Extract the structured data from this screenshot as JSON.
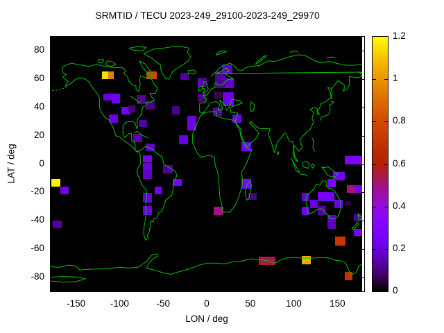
{
  "title": "SRMTID / TECU 2023-249_29100-2023-249_29970",
  "axes": {
    "x_label": "LON / deg",
    "y_label": "LAT / deg",
    "x_ticks": [
      -150,
      -100,
      -50,
      0,
      50,
      100,
      150
    ],
    "y_ticks": [
      80,
      60,
      40,
      20,
      0,
      -20,
      -40,
      -60,
      -80
    ],
    "x_range": [
      -180,
      180
    ],
    "y_range": [
      -90,
      90
    ]
  },
  "colorbar": {
    "min": 0,
    "max": 1.2,
    "tick_values": [
      0,
      0.2,
      0.4,
      0.6,
      0.8,
      1,
      1.2
    ],
    "tick_labels": [
      "0",
      "0.2",
      "0.4",
      "0.6",
      "0.8",
      "1",
      "1.2"
    ]
  },
  "colors": {
    "page_background": "#ffffff",
    "map_background": "#000000",
    "coastline": "#00c400",
    "frame": "#000000"
  },
  "chart_data": {
    "type": "heatmap",
    "title": "SRMTID / TECU 2023-249_29100-2023-249_29970",
    "units": "TECU",
    "value_range": [
      0,
      1.2
    ],
    "palette": "gnuplot pm3d (black - violet - red - orange - yellow)",
    "xlabel": "LON / deg",
    "ylabel": "LAT / deg",
    "cells": [
      {
        "lon": -121,
        "lat": 65.5,
        "v": 1.15,
        "w": 7,
        "h": 5.4
      },
      {
        "lon": -114,
        "lat": 65.5,
        "v": 0.95,
        "w": 6.5,
        "h": 5.4
      },
      {
        "lon": -70,
        "lat": 65.5,
        "v": 0.78,
        "w": 12,
        "h": 5.4
      },
      {
        "lon": -119.5,
        "lat": 50,
        "v": 0.2,
        "w": 9.5,
        "h": 5
      },
      {
        "lon": -110,
        "lat": 50,
        "v": 0.24,
        "w": 9.5,
        "h": 7
      },
      {
        "lon": -99,
        "lat": 40.5,
        "v": 0.25,
        "w": 10.5,
        "h": 5.4
      },
      {
        "lon": -113,
        "lat": 35,
        "v": 0.2,
        "w": 10.5,
        "h": 6
      },
      {
        "lon": -81,
        "lat": 49,
        "v": 0.12,
        "w": 10.5,
        "h": 6.4
      },
      {
        "lon": -71,
        "lat": 45,
        "v": 0.1,
        "w": 10.5,
        "h": 6.4
      },
      {
        "lon": -91,
        "lat": 41.5,
        "v": 0.1,
        "w": 8,
        "h": 5
      },
      {
        "lon": -79,
        "lat": 31,
        "v": 0.13,
        "w": 9.5,
        "h": 5
      },
      {
        "lon": -85,
        "lat": 21.5,
        "v": 0.14,
        "w": 10.5,
        "h": 6
      },
      {
        "lon": -71,
        "lat": 14.5,
        "v": 0.17,
        "w": 10.5,
        "h": 5.4
      },
      {
        "lon": -74,
        "lat": 6,
        "v": 0.26,
        "w": 10.5,
        "h": 5
      },
      {
        "lon": -74,
        "lat": 1,
        "v": 0.21,
        "w": 10.5,
        "h": 5
      },
      {
        "lon": -74,
        "lat": -3.7,
        "v": 0.17,
        "w": 10.5,
        "h": 7
      },
      {
        "lon": -60.5,
        "lat": -16,
        "v": 0.24,
        "w": 8,
        "h": 5.4
      },
      {
        "lon": -74,
        "lat": -20.3,
        "v": 0.2,
        "w": 10.5,
        "h": 7
      },
      {
        "lon": -74,
        "lat": -29.7,
        "v": 0.21,
        "w": 10.5,
        "h": 6.4
      },
      {
        "lon": -51,
        "lat": -0.7,
        "v": 0.12,
        "w": 11,
        "h": 6
      },
      {
        "lon": -40,
        "lat": -10.5,
        "v": 0.25,
        "w": 10.5,
        "h": 5
      },
      {
        "lon": -179,
        "lat": -10.5,
        "v": 1.18,
        "w": 10.5,
        "h": 5.4
      },
      {
        "lon": -169,
        "lat": -16,
        "v": 0.23,
        "w": 9.5,
        "h": 5.4
      },
      {
        "lon": -178,
        "lat": -40,
        "v": 0.13,
        "w": 10.5,
        "h": 5.4
      },
      {
        "lon": -31,
        "lat": 64.5,
        "v": 0.12,
        "w": 9.5,
        "h": 5
      },
      {
        "lon": -11,
        "lat": 60.5,
        "v": 0.19,
        "w": 9.5,
        "h": 6
      },
      {
        "lon": -11,
        "lat": 50,
        "v": 0.1,
        "w": 9.5,
        "h": 6
      },
      {
        "lon": -41,
        "lat": 41,
        "v": 0.11,
        "w": 9.5,
        "h": 6
      },
      {
        "lon": -23,
        "lat": 34,
        "v": 0.22,
        "w": 10.5,
        "h": 10
      },
      {
        "lon": -33,
        "lat": 20.5,
        "v": 0.21,
        "w": 11,
        "h": 6.4
      },
      {
        "lon": -7,
        "lat": 61,
        "v": 0.11,
        "w": 6.4,
        "h": 5.4
      },
      {
        "lon": 9,
        "lat": 65.5,
        "v": 0.12,
        "w": 12,
        "h": 11.8
      },
      {
        "lon": 17,
        "lat": 70.5,
        "v": 0.17,
        "w": 12,
        "h": 7
      },
      {
        "lon": 21,
        "lat": 60.5,
        "v": 0.18,
        "w": 9.5,
        "h": 7
      },
      {
        "lon": 7,
        "lat": 51.5,
        "v": 0.06,
        "w": 9.5,
        "h": 5
      },
      {
        "lon": 17.5,
        "lat": 51,
        "v": 0.22,
        "w": 12.7,
        "h": 10
      },
      {
        "lon": 6,
        "lat": 40,
        "v": 0.14,
        "w": 11,
        "h": 6
      },
      {
        "lon": 28.5,
        "lat": 35,
        "v": 0.23,
        "w": 10.5,
        "h": 6
      },
      {
        "lon": 39,
        "lat": 15.5,
        "v": 0.24,
        "w": 11,
        "h": 6.4
      },
      {
        "lon": 39,
        "lat": -10.5,
        "v": 0.27,
        "w": 11,
        "h": 7
      },
      {
        "lon": 47,
        "lat": -20.3,
        "v": 0.1,
        "w": 9.5,
        "h": 5
      },
      {
        "lon": 7,
        "lat": -30,
        "v": 0.5,
        "w": 11,
        "h": 6
      },
      {
        "lon": 144,
        "lat": -5.6,
        "v": 0.25,
        "w": 13.5,
        "h": 6
      },
      {
        "lon": 138,
        "lat": -10.5,
        "v": 0.28,
        "w": 9,
        "h": 6
      },
      {
        "lon": 160,
        "lat": -15,
        "v": 0.5,
        "w": 9.5,
        "h": 5.4
      },
      {
        "lon": 169.5,
        "lat": -15,
        "v": 0.24,
        "w": 8.8,
        "h": 5.4
      },
      {
        "lon": 108,
        "lat": -20.3,
        "v": 0.18,
        "w": 9.5,
        "h": 6
      },
      {
        "lon": 118,
        "lat": -25.2,
        "v": 0.2,
        "w": 9,
        "h": 6
      },
      {
        "lon": 126.5,
        "lat": -20,
        "v": 0.25,
        "w": 19,
        "h": 6.4
      },
      {
        "lon": 146,
        "lat": -25.2,
        "v": 0.21,
        "w": 9,
        "h": 6
      },
      {
        "lon": 158,
        "lat": -26,
        "v": 0.05,
        "w": 7,
        "h": 3.4
      },
      {
        "lon": 108,
        "lat": -30,
        "v": 0.23,
        "w": 9.5,
        "h": 6
      },
      {
        "lon": 126.5,
        "lat": -29.7,
        "v": 0.13,
        "w": 9.5,
        "h": 6.4
      },
      {
        "lon": 138,
        "lat": -36,
        "v": 0.19,
        "w": 9,
        "h": 5
      },
      {
        "lon": 138,
        "lat": -41,
        "v": 0.15,
        "w": 9,
        "h": 5
      },
      {
        "lon": 168,
        "lat": -35,
        "v": 0.12,
        "w": 10.5,
        "h": 5
      },
      {
        "lon": 168,
        "lat": -46,
        "v": 0.25,
        "w": 10.5,
        "h": 5
      },
      {
        "lon": 146.5,
        "lat": -51,
        "v": 0.72,
        "w": 12,
        "h": 6.4
      },
      {
        "lon": 157.5,
        "lat": -76,
        "v": 0.7,
        "w": 9,
        "h": 6
      },
      {
        "lon": 59,
        "lat": -65.5,
        "v": 0.55,
        "w": 19,
        "h": 6
      },
      {
        "lon": 108,
        "lat": -65,
        "v": 1.05,
        "w": 10.5,
        "h": 6
      },
      {
        "lon": 157.5,
        "lat": 5.6,
        "v": 0.28,
        "w": 21,
        "h": 6
      }
    ]
  }
}
